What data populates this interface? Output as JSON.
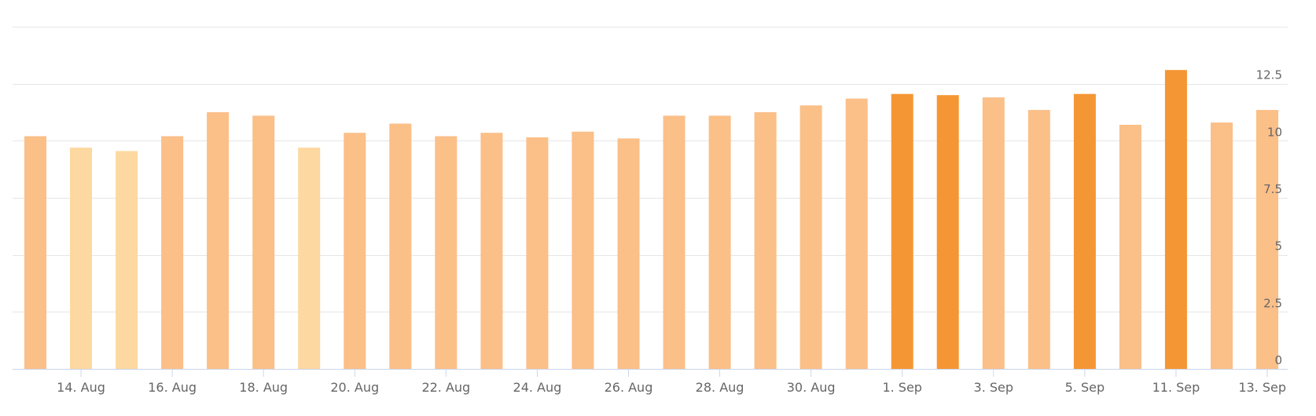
{
  "chart_data": {
    "type": "bar",
    "title": "",
    "xlabel": "",
    "ylabel": "",
    "ylim": [
      0,
      15
    ],
    "y_axis_side": "right",
    "grid": true,
    "y_ticks": [
      "0",
      "2.5",
      "5",
      "7.5",
      "10",
      "12.5"
    ],
    "x_tick_labels": [
      "14. Aug",
      "16. Aug",
      "18. Aug",
      "20. Aug",
      "22. Aug",
      "24. Aug",
      "26. Aug",
      "28. Aug",
      "30. Aug",
      "1. Sep",
      "3. Sep",
      "5. Sep",
      "11. Sep",
      "13. Sep"
    ],
    "colors": {
      "pale": "#fdd8a0",
      "light": "#fbbf88",
      "strong": "#f59634",
      "grid": "#e6e6e6",
      "axis": "#ccd6eb",
      "label": "#666666"
    },
    "bars": [
      {
        "value": 10.2,
        "shade": "light"
      },
      {
        "value": 9.7,
        "shade": "pale"
      },
      {
        "value": 9.55,
        "shade": "pale"
      },
      {
        "value": 10.2,
        "shade": "light"
      },
      {
        "value": 11.25,
        "shade": "light"
      },
      {
        "value": 11.1,
        "shade": "light"
      },
      {
        "value": 9.7,
        "shade": "pale"
      },
      {
        "value": 10.35,
        "shade": "light"
      },
      {
        "value": 10.75,
        "shade": "light"
      },
      {
        "value": 10.2,
        "shade": "light"
      },
      {
        "value": 10.35,
        "shade": "light"
      },
      {
        "value": 10.15,
        "shade": "light"
      },
      {
        "value": 10.4,
        "shade": "light"
      },
      {
        "value": 10.1,
        "shade": "light"
      },
      {
        "value": 11.1,
        "shade": "light"
      },
      {
        "value": 11.1,
        "shade": "light"
      },
      {
        "value": 11.25,
        "shade": "light"
      },
      {
        "value": 11.55,
        "shade": "light"
      },
      {
        "value": 11.85,
        "shade": "light"
      },
      {
        "value": 12.05,
        "shade": "strong"
      },
      {
        "value": 12.0,
        "shade": "strong"
      },
      {
        "value": 11.9,
        "shade": "light"
      },
      {
        "value": 11.35,
        "shade": "light"
      },
      {
        "value": 12.05,
        "shade": "strong"
      },
      {
        "value": 10.7,
        "shade": "light"
      },
      {
        "value": 13.1,
        "shade": "strong"
      },
      {
        "value": 10.8,
        "shade": "light"
      },
      {
        "value": 11.35,
        "shade": "light"
      }
    ]
  }
}
